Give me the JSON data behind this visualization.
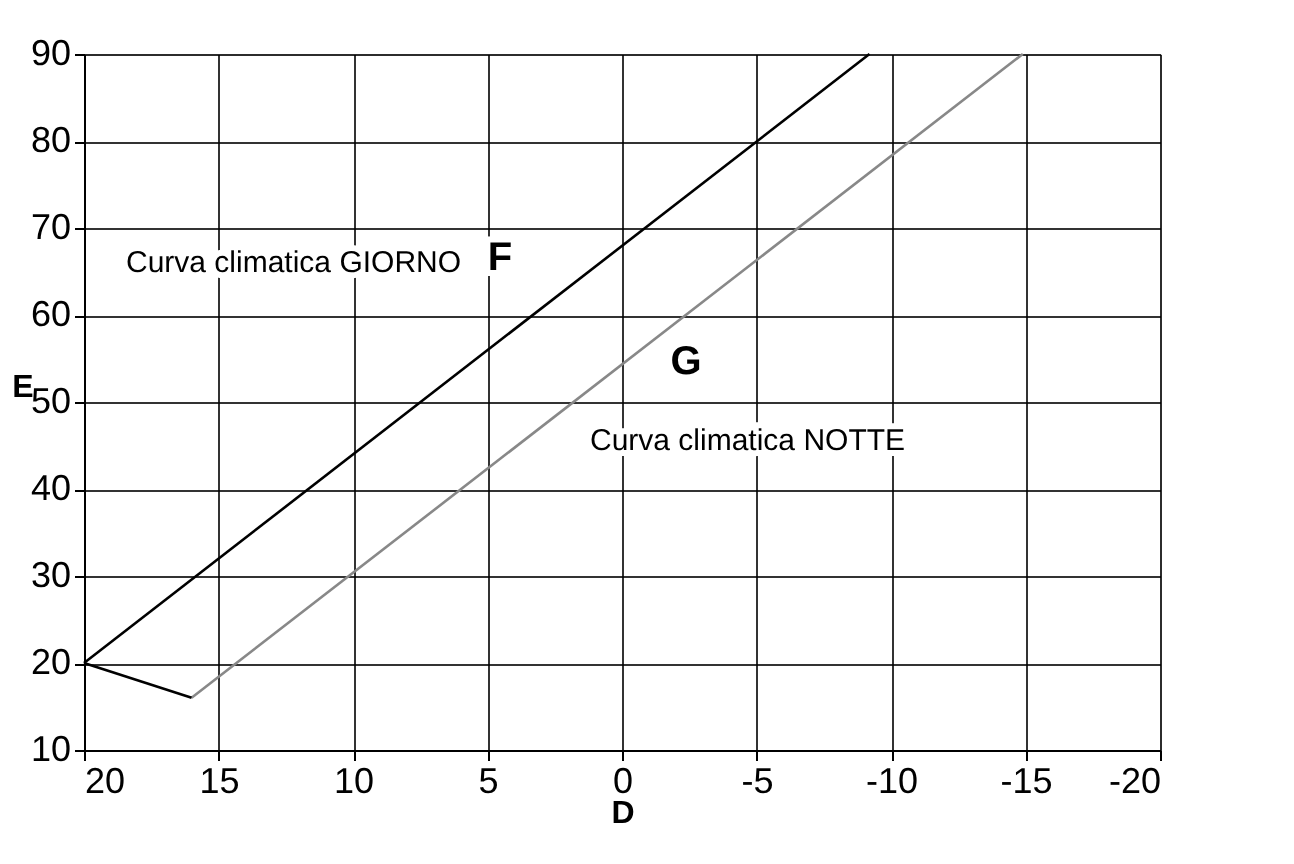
{
  "chart_data": {
    "type": "line",
    "xlabel": "D",
    "ylabel": "E",
    "xlim": [
      20,
      -20
    ],
    "xticks": [
      20,
      15,
      10,
      5,
      0,
      -5,
      -10,
      -15,
      -20
    ],
    "ylim": [
      10,
      90
    ],
    "yticks": [
      10,
      20,
      30,
      40,
      50,
      60,
      70,
      80,
      90
    ],
    "grid": true,
    "marker": "none",
    "line_style": "solid",
    "series": [
      {
        "color": "#000000",
        "x": [
          20,
          -9.2
        ],
        "values": [
          20,
          90
        ]
      },
      {
        "color": "#888888",
        "x": [
          16,
          -14.9
        ],
        "values": [
          16,
          90
        ]
      },
      {
        "color": "#000000",
        "x": [
          20,
          16
        ],
        "values": [
          20,
          16
        ]
      }
    ],
    "annotations": [
      "Curva climatica GIORNO",
      "F",
      "G",
      "Curva climatica NOTTE"
    ]
  }
}
